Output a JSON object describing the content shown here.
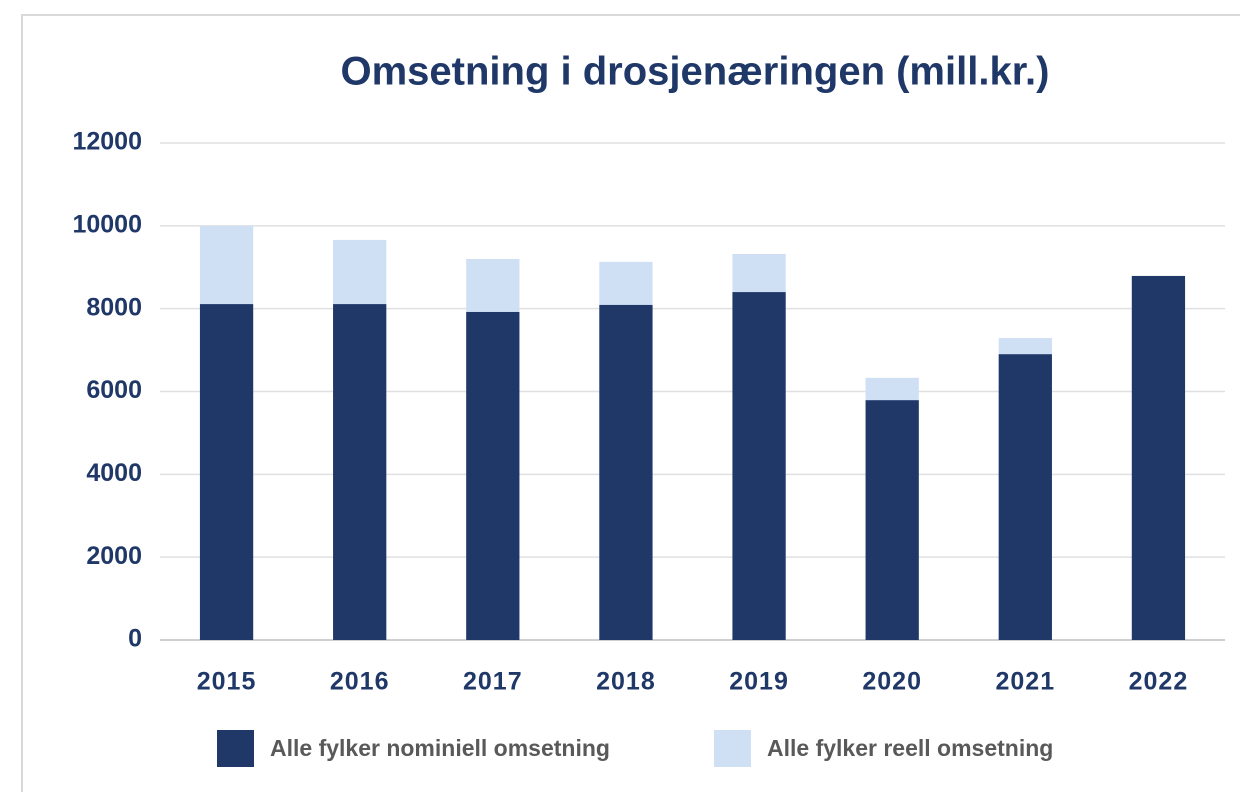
{
  "chart_data": {
    "type": "bar",
    "barmode": "overlay",
    "title": "Omsetning i drosjenæringen (mill.kr.)",
    "categories": [
      "2015",
      "2016",
      "2017",
      "2018",
      "2019",
      "2020",
      "2021",
      "2022"
    ],
    "series": [
      {
        "name": "Alle fylker nominiell omsetning",
        "color": "#1f3868",
        "values": [
          8110,
          8110,
          7920,
          8090,
          8400,
          5790,
          6900,
          8790
        ]
      },
      {
        "name": "Alle fylker reell omsetning",
        "color": "#cfdff4",
        "values": [
          10000,
          9660,
          9200,
          9130,
          9320,
          6330,
          7290,
          8790
        ]
      }
    ],
    "ylim": [
      0,
      12000
    ],
    "yticks": [
      0,
      2000,
      4000,
      6000,
      8000,
      10000,
      12000
    ],
    "grid": true,
    "legend": "bottom"
  }
}
